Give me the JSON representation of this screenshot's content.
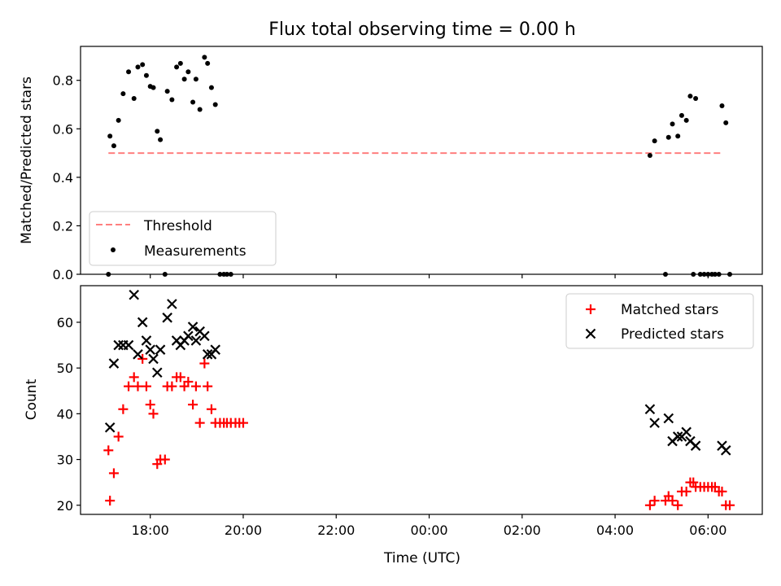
{
  "figure": {
    "title": "Flux total observing time = 0.00 h"
  },
  "chart_data": [
    {
      "type": "scatter",
      "ylabel": "Matched/Predicted stars",
      "xlabel": "",
      "ylim": [
        0,
        0.94
      ],
      "yticks": [
        "0.0",
        "0.2",
        "0.4",
        "0.6",
        "0.8"
      ],
      "legend": {
        "position": "lower-left",
        "entries": [
          {
            "label": "Threshold",
            "style": "dashed-line",
            "color": "#ff7f7f"
          },
          {
            "label": "Measurements",
            "style": "dot",
            "color": "#000000"
          }
        ]
      },
      "threshold": {
        "name": "Threshold",
        "value": 0.5,
        "x_start": "17:06",
        "x_end": "06:18"
      },
      "series": [
        {
          "name": "Measurements",
          "color": "#000000",
          "points": [
            [
              "17:06",
              0.0
            ],
            [
              "17:08",
              0.57
            ],
            [
              "17:13",
              0.53
            ],
            [
              "17:19",
              0.635
            ],
            [
              "17:25",
              0.745
            ],
            [
              "17:32",
              0.835
            ],
            [
              "17:39",
              0.725
            ],
            [
              "17:44",
              0.855
            ],
            [
              "17:50",
              0.865
            ],
            [
              "17:55",
              0.82
            ],
            [
              "18:00",
              0.775
            ],
            [
              "18:04",
              0.77
            ],
            [
              "18:09",
              0.59
            ],
            [
              "18:13",
              0.555
            ],
            [
              "18:19",
              0.0
            ],
            [
              "18:22",
              0.755
            ],
            [
              "18:28",
              0.72
            ],
            [
              "18:34",
              0.855
            ],
            [
              "18:39",
              0.87
            ],
            [
              "18:44",
              0.805
            ],
            [
              "18:49",
              0.835
            ],
            [
              "18:55",
              0.71
            ],
            [
              "18:59",
              0.805
            ],
            [
              "19:04",
              0.68
            ],
            [
              "19:10",
              0.895
            ],
            [
              "19:14",
              0.87
            ],
            [
              "19:19",
              0.77
            ],
            [
              "19:24",
              0.7
            ],
            [
              "19:30",
              0.0
            ],
            [
              "19:35",
              0.0
            ],
            [
              "19:39",
              0.0
            ],
            [
              "19:44",
              0.0
            ],
            [
              "04:45",
              0.49
            ],
            [
              "04:51",
              0.55
            ],
            [
              "05:05",
              0.0
            ],
            [
              "05:09",
              0.565
            ],
            [
              "05:14",
              0.62
            ],
            [
              "05:21",
              0.57
            ],
            [
              "05:26",
              0.655
            ],
            [
              "05:32",
              0.635
            ],
            [
              "05:37",
              0.735
            ],
            [
              "05:41",
              0.0
            ],
            [
              "05:44",
              0.725
            ],
            [
              "05:50",
              0.0
            ],
            [
              "05:55",
              0.0
            ],
            [
              "06:00",
              0.0
            ],
            [
              "06:05",
              0.0
            ],
            [
              "06:09",
              0.0
            ],
            [
              "06:14",
              0.0
            ],
            [
              "06:18",
              0.695
            ],
            [
              "06:23",
              0.625
            ],
            [
              "06:28",
              0.0
            ]
          ]
        }
      ]
    },
    {
      "type": "scatter",
      "ylabel": "Count",
      "xlabel": "Time (UTC)",
      "ylim": [
        18,
        68
      ],
      "yticks": [
        "20",
        "30",
        "40",
        "50",
        "60"
      ],
      "xticks": [
        "18:00",
        "20:00",
        "22:00",
        "00:00",
        "02:00",
        "04:00",
        "06:00"
      ],
      "legend": {
        "position": "upper-right",
        "entries": [
          {
            "label": "Matched stars",
            "style": "plus",
            "color": "#ff0000"
          },
          {
            "label": "Predicted stars",
            "style": "x",
            "color": "#000000"
          }
        ]
      },
      "series": [
        {
          "name": "Matched stars",
          "marker": "plus",
          "color": "#ff0000",
          "points": [
            [
              "17:06",
              32
            ],
            [
              "17:08",
              21
            ],
            [
              "17:13",
              27
            ],
            [
              "17:19",
              35
            ],
            [
              "17:25",
              41
            ],
            [
              "17:32",
              46
            ],
            [
              "17:39",
              48
            ],
            [
              "17:44",
              46
            ],
            [
              "17:50",
              52
            ],
            [
              "17:55",
              46
            ],
            [
              "18:00",
              42
            ],
            [
              "18:04",
              40
            ],
            [
              "18:09",
              29
            ],
            [
              "18:13",
              30
            ],
            [
              "18:19",
              30
            ],
            [
              "18:22",
              46
            ],
            [
              "18:28",
              46
            ],
            [
              "18:34",
              48
            ],
            [
              "18:39",
              48
            ],
            [
              "18:44",
              46
            ],
            [
              "18:49",
              47
            ],
            [
              "18:55",
              42
            ],
            [
              "18:59",
              46
            ],
            [
              "19:04",
              38
            ],
            [
              "19:10",
              51
            ],
            [
              "19:14",
              46
            ],
            [
              "19:19",
              41
            ],
            [
              "19:24",
              38
            ],
            [
              "19:30",
              38
            ],
            [
              "19:35",
              38
            ],
            [
              "19:39",
              38
            ],
            [
              "19:44",
              38
            ],
            [
              "19:50",
              38
            ],
            [
              "19:55",
              38
            ],
            [
              "20:00",
              38
            ],
            [
              "04:45",
              20
            ],
            [
              "04:51",
              21
            ],
            [
              "05:05",
              21
            ],
            [
              "05:09",
              22
            ],
            [
              "05:14",
              21
            ],
            [
              "05:21",
              20
            ],
            [
              "05:26",
              23
            ],
            [
              "05:32",
              23
            ],
            [
              "05:37",
              25
            ],
            [
              "05:41",
              25
            ],
            [
              "05:44",
              24
            ],
            [
              "05:50",
              24
            ],
            [
              "05:55",
              24
            ],
            [
              "06:00",
              24
            ],
            [
              "06:05",
              24
            ],
            [
              "06:09",
              24
            ],
            [
              "06:14",
              23
            ],
            [
              "06:18",
              23
            ],
            [
              "06:23",
              20
            ],
            [
              "06:28",
              20
            ]
          ]
        },
        {
          "name": "Predicted stars",
          "marker": "x",
          "color": "#000000",
          "points": [
            [
              "17:08",
              37
            ],
            [
              "17:13",
              51
            ],
            [
              "17:19",
              55
            ],
            [
              "17:25",
              55
            ],
            [
              "17:32",
              55
            ],
            [
              "17:39",
              66
            ],
            [
              "17:44",
              53
            ],
            [
              "17:50",
              60
            ],
            [
              "17:55",
              56
            ],
            [
              "18:00",
              54
            ],
            [
              "18:04",
              52
            ],
            [
              "18:09",
              49
            ],
            [
              "18:13",
              54
            ],
            [
              "18:22",
              61
            ],
            [
              "18:28",
              64
            ],
            [
              "18:34",
              56
            ],
            [
              "18:39",
              55
            ],
            [
              "18:44",
              56
            ],
            [
              "18:49",
              57
            ],
            [
              "18:55",
              59
            ],
            [
              "18:59",
              56
            ],
            [
              "19:04",
              58
            ],
            [
              "19:10",
              57
            ],
            [
              "19:14",
              53
            ],
            [
              "19:19",
              53
            ],
            [
              "19:24",
              54
            ],
            [
              "04:45",
              41
            ],
            [
              "04:51",
              38
            ],
            [
              "05:09",
              39
            ],
            [
              "05:14",
              34
            ],
            [
              "05:21",
              35
            ],
            [
              "05:26",
              35
            ],
            [
              "05:32",
              36
            ],
            [
              "05:37",
              34
            ],
            [
              "05:44",
              33
            ],
            [
              "06:18",
              33
            ],
            [
              "06:23",
              32
            ]
          ]
        }
      ]
    }
  ]
}
